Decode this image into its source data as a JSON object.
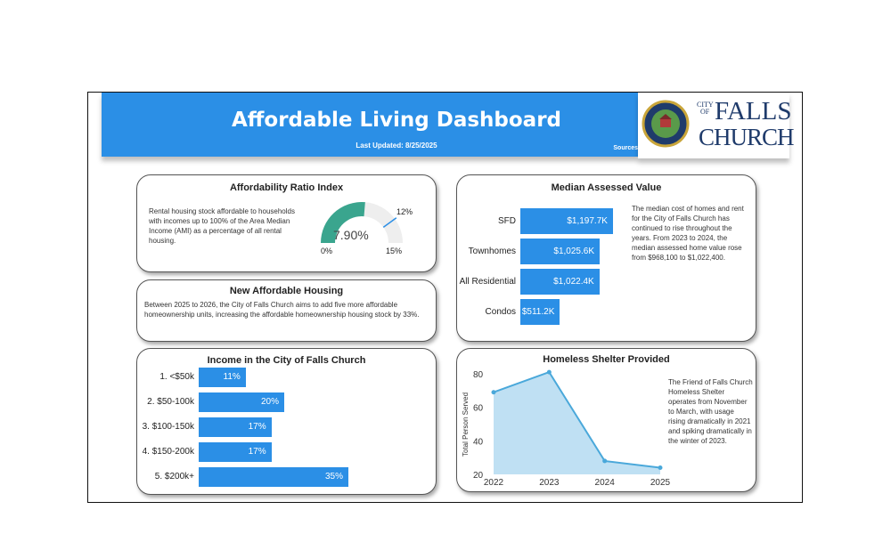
{
  "header": {
    "title": "Affordable Living Dashboard",
    "last_updated": "Last Updated: 8/25/2025",
    "sources_label": "Sources"
  },
  "logo": {
    "text_city": "CITY",
    "text_of": "OF",
    "text_falls": "FALLS",
    "text_church": "CHURCH"
  },
  "affordability": {
    "title": "Affordability Ratio Index",
    "description": "Rental housing stock affordable to households with incomes up to 100% of the Area Median Income (AMI) as a percentage of all rental housing.",
    "value": 7.9,
    "value_label": "7.90%",
    "min_label": "0%",
    "max_label": "15%",
    "target_label": "12%",
    "min": 0,
    "max": 15,
    "target": 12,
    "colors": {
      "fill": "#3aa58e",
      "track": "#eeeeee",
      "target": "#2b8fe6"
    }
  },
  "new_housing": {
    "title": "New Affordable Housing",
    "description": "Between 2025 to 2026, the City of Falls Church aims to add five more affordable homeownership units, increasing the affordable homeownership housing stock by 33%."
  },
  "income": {
    "title": "Income in the City of Falls Church",
    "chart_data": {
      "type": "bar",
      "categories": [
        "1. <$50k",
        "2. $50-100k",
        "3. $100-150k",
        "4. $150-200k",
        "5. $200k+"
      ],
      "values": [
        11,
        20,
        17,
        17,
        35
      ],
      "labels": [
        "11%",
        "20%",
        "17%",
        "17%",
        "35%"
      ]
    }
  },
  "median": {
    "title": "Median Assessed Value",
    "description": "The median cost of homes and rent for the City of Falls Church has continued to rise throughout the years. From 2023 to 2024, the median assessed home value rose from $968,100 to $1,022,400.",
    "chart_data": {
      "type": "bar",
      "categories": [
        "SFD",
        "Townhomes",
        "All Residential",
        "Condos"
      ],
      "values": [
        1197.7,
        1025.6,
        1022.4,
        511.2
      ],
      "labels": [
        "$1,197.7K",
        "$1,025.6K",
        "$1,022.4K",
        "$511.2K"
      ]
    }
  },
  "shelter": {
    "title": "Homeless Shelter Provided",
    "description": "The Friend of Falls Church Homeless Shelter operates from November to March, with usage rising dramatically in 2021 and spiking dramatically in the winter of 2023.",
    "chart_data": {
      "type": "area",
      "x": [
        "2022",
        "2023",
        "2024",
        "2025"
      ],
      "y": [
        69,
        81,
        28,
        24
      ],
      "ylabel": "Total Person Served",
      "ylim": [
        20,
        80
      ],
      "yticks": [
        "80",
        "60",
        "40",
        "20"
      ],
      "color": "#4aa8da"
    }
  }
}
